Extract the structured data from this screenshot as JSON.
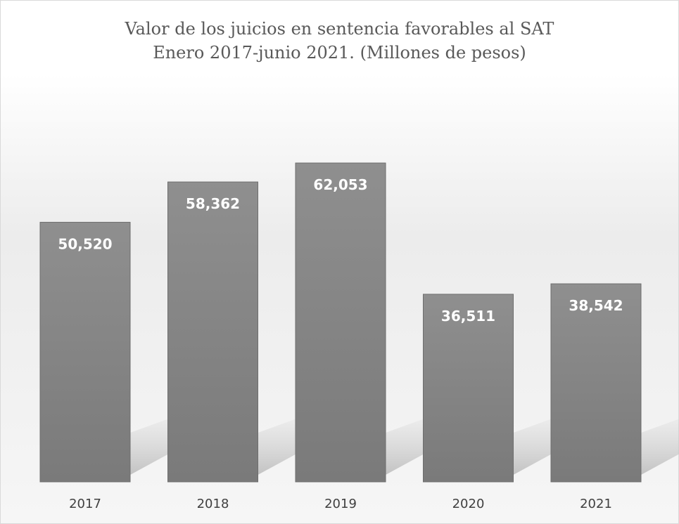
{
  "chart_data": {
    "type": "bar",
    "title": "Valor de los juicios en sentencia favorables al SAT",
    "subtitle": "Enero 2017-junio 2021. (Millones de pesos)",
    "categories": [
      "2017",
      "2018",
      "2019",
      "2020",
      "2021"
    ],
    "values": [
      50520,
      58362,
      62053,
      36511,
      38542
    ],
    "value_labels": [
      "50,520",
      "58,362",
      "62,053",
      "36,511",
      "38,542"
    ],
    "ylim": [
      0,
      76000
    ],
    "grid": false,
    "legend": "none",
    "colors": {
      "bar": "#8a8a8a",
      "bar_edge": "#6e6e6e",
      "shadow": "#c8c8c8"
    }
  }
}
